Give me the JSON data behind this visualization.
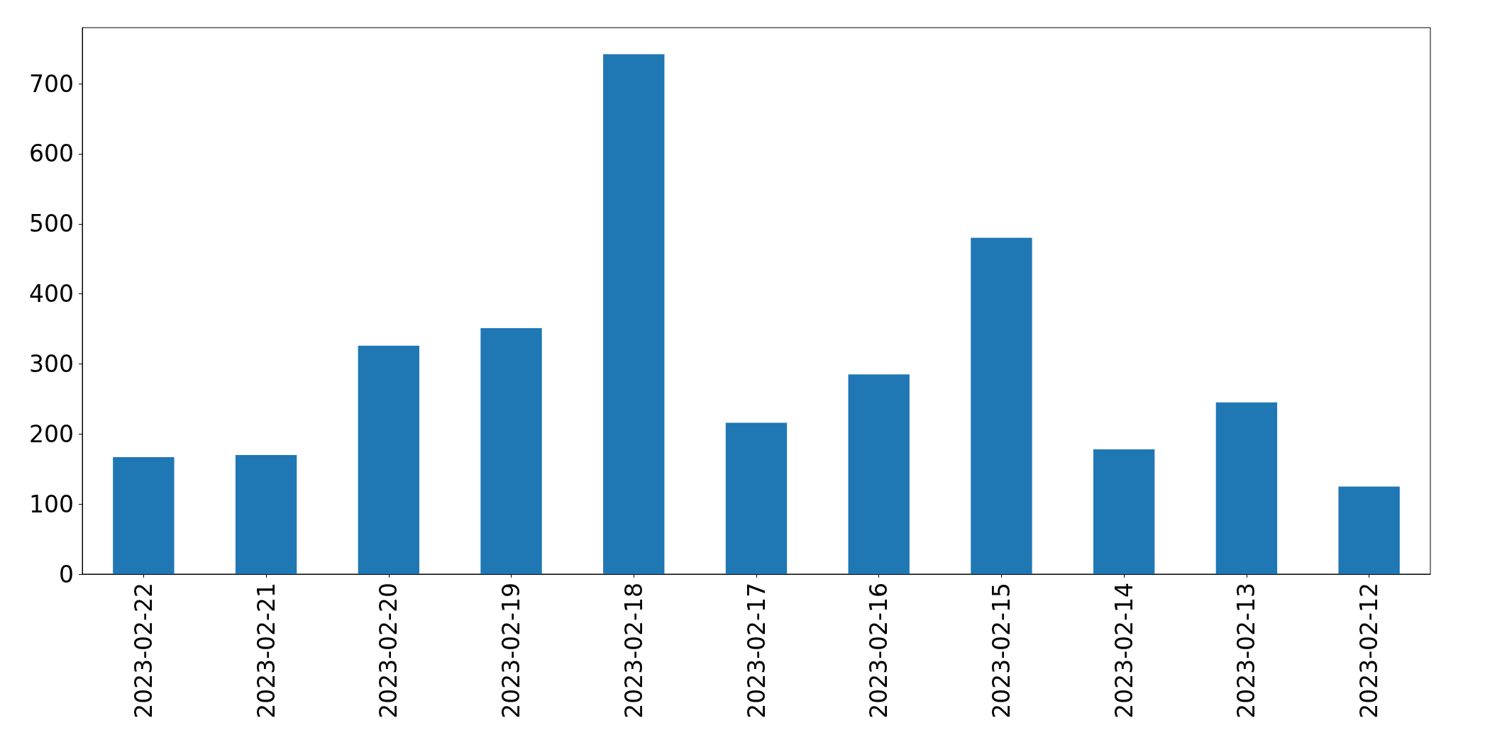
{
  "chart_data": {
    "type": "bar",
    "categories": [
      "2023-02-22",
      "2023-02-21",
      "2023-02-20",
      "2023-02-19",
      "2023-02-18",
      "2023-02-17",
      "2023-02-16",
      "2023-02-15",
      "2023-02-14",
      "2023-02-13",
      "2023-02-12"
    ],
    "values": [
      167,
      170,
      326,
      351,
      742,
      216,
      285,
      480,
      178,
      245,
      125
    ],
    "color": "#1f77b4",
    "ylim": [
      0,
      780
    ],
    "yticks": [
      0,
      100,
      200,
      300,
      400,
      500,
      600,
      700
    ]
  }
}
